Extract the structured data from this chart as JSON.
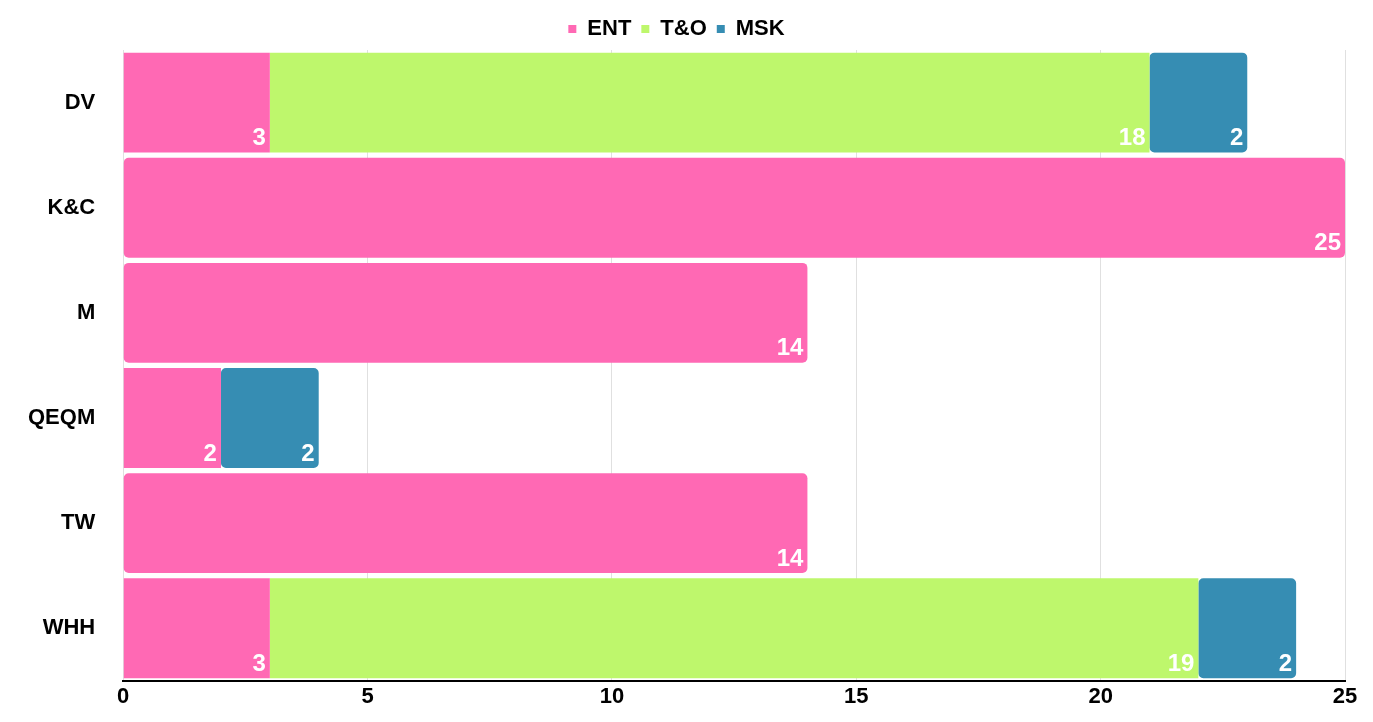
{
  "chart_data": {
    "type": "bar",
    "orientation": "horizontal",
    "stacked": true,
    "categories": [
      "DV",
      "K&C",
      "M",
      "QEQM",
      "TW",
      "WHH"
    ],
    "series": [
      {
        "name": "ENT",
        "color": "#ff69b4",
        "values": [
          3,
          25,
          14,
          2,
          14,
          3
        ]
      },
      {
        "name": "T&O",
        "color": "#bef76c",
        "values": [
          18,
          null,
          null,
          null,
          null,
          19
        ]
      },
      {
        "name": "MSK",
        "color": "#368db3",
        "values": [
          2,
          null,
          null,
          2,
          null,
          2
        ]
      }
    ],
    "xlim": [
      0,
      25
    ],
    "xticks": [
      0,
      5,
      10,
      15,
      20,
      25
    ],
    "grid": "x",
    "legend": "top",
    "data_labels": true
  }
}
